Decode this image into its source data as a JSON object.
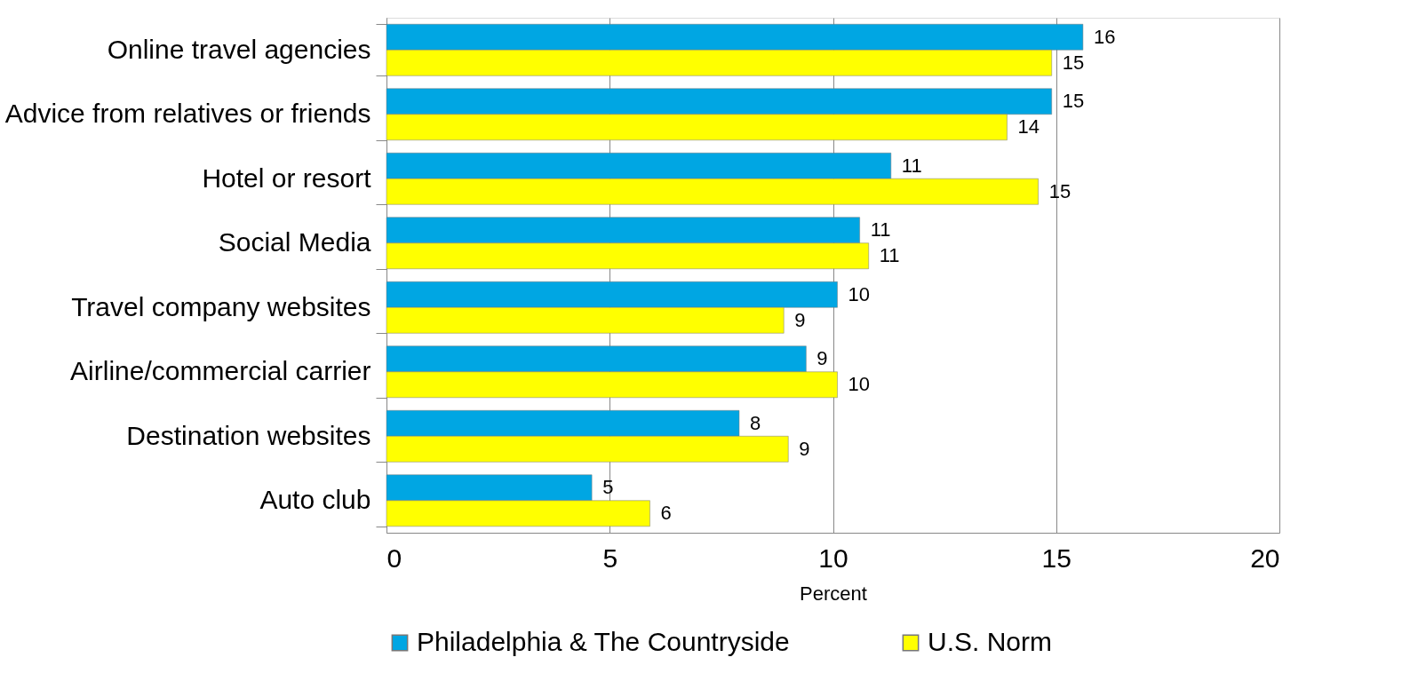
{
  "chart_data": {
    "type": "bar",
    "orientation": "horizontal",
    "xlabel": "Percent",
    "categories": [
      "Online travel agencies",
      "Advice from relatives or friends",
      "Hotel or resort",
      "Social Media",
      "Travel company websites",
      "Airline/commercial carrier",
      "Destination websites",
      "Auto club"
    ],
    "series": [
      {
        "name": "Philadelphia & The Countryside",
        "color": "#00a6e3",
        "values": [
          15.6,
          14.9,
          11.3,
          10.6,
          10.1,
          9.4,
          7.9,
          4.6
        ],
        "value_labels": [
          "16",
          "15",
          "11",
          "11",
          "10",
          "9",
          "8",
          "5"
        ]
      },
      {
        "name": "U.S. Norm",
        "color": "#ffff00",
        "values": [
          14.9,
          13.9,
          14.6,
          10.8,
          8.9,
          10.1,
          9.0,
          5.9
        ],
        "value_labels": [
          "15",
          "14",
          "15",
          "11",
          "9",
          "10",
          "9",
          "6"
        ]
      }
    ],
    "xlim": [
      0,
      20
    ],
    "xticks": [
      0,
      5,
      10,
      15,
      20
    ],
    "grid": "x",
    "legend": "bottom"
  }
}
